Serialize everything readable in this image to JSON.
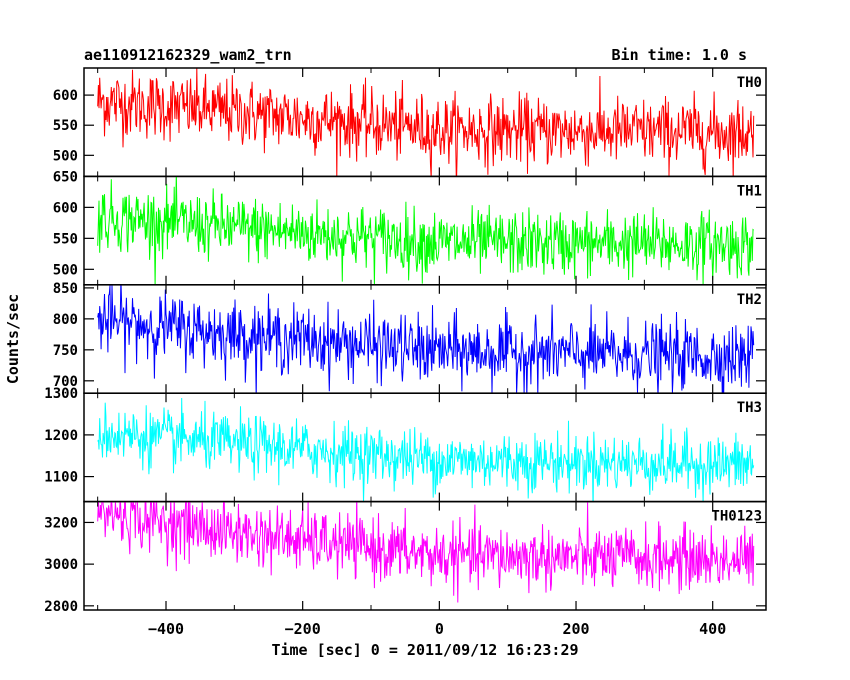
{
  "chart_data": {
    "type": "line",
    "title": "ae110912162329_wam2_trn",
    "subtitle": "Bin time: 1.0 s",
    "xlabel": "Time [sec] 0 = 2011/09/12 16:23:29",
    "ylabel": "Counts/sec",
    "xlim": [
      -520,
      478
    ],
    "x_ticks": [
      -400,
      -200,
      0,
      200,
      400
    ],
    "x_tick_labels": [
      "−400",
      "−200",
      "0",
      "200",
      "400"
    ],
    "x_range_data": [
      -500,
      460
    ],
    "grid": false,
    "panels": [
      {
        "name": "TH0",
        "color": "#ff0000",
        "ylim": [
          465,
          645
        ],
        "y_ticks": [
          500,
          550,
          600
        ],
        "y_tick_labels": [
          "500",
          "550",
          "600"
        ],
        "trend": [
          [
            -500,
            590
          ],
          [
            -300,
            572
          ],
          [
            0,
            542
          ],
          [
            460,
            538
          ]
        ],
        "noise": 28
      },
      {
        "name": "TH1",
        "color": "#00ff00",
        "ylim": [
          475,
          650
        ],
        "y_ticks": [
          500,
          550,
          600,
          650
        ],
        "y_tick_labels": [
          "500",
          "550",
          "600",
          "650"
        ],
        "trend": [
          [
            -500,
            585
          ],
          [
            -300,
            567
          ],
          [
            0,
            543
          ],
          [
            460,
            540
          ]
        ],
        "noise": 26
      },
      {
        "name": "TH2",
        "color": "#0000ff",
        "ylim": [
          680,
          855
        ],
        "y_ticks": [
          700,
          750,
          800,
          850
        ],
        "y_tick_labels": [
          "700",
          "750",
          "800",
          "850"
        ],
        "trend": [
          [
            -500,
            798
          ],
          [
            -300,
            775
          ],
          [
            0,
            748
          ],
          [
            460,
            738
          ]
        ],
        "noise": 27
      },
      {
        "name": "TH3",
        "color": "#00ffff",
        "ylim": [
          1040,
          1300
        ],
        "y_ticks": [
          1100,
          1200,
          1300
        ],
        "y_tick_labels": [
          "1100",
          "1200",
          "1300"
        ],
        "trend": [
          [
            -500,
            1205
          ],
          [
            -300,
            1178
          ],
          [
            0,
            1140
          ],
          [
            460,
            1128
          ]
        ],
        "noise": 35
      },
      {
        "name": "TH0123",
        "color": "#ff00ff",
        "ylim": [
          2780,
          3300
        ],
        "y_ticks": [
          2800,
          3000,
          3200
        ],
        "y_tick_labels": [
          "2800",
          "3000",
          "3200"
        ],
        "trend": [
          [
            -500,
            3250
          ],
          [
            -300,
            3150
          ],
          [
            0,
            3040
          ],
          [
            460,
            3020
          ]
        ],
        "noise": 75
      }
    ]
  }
}
